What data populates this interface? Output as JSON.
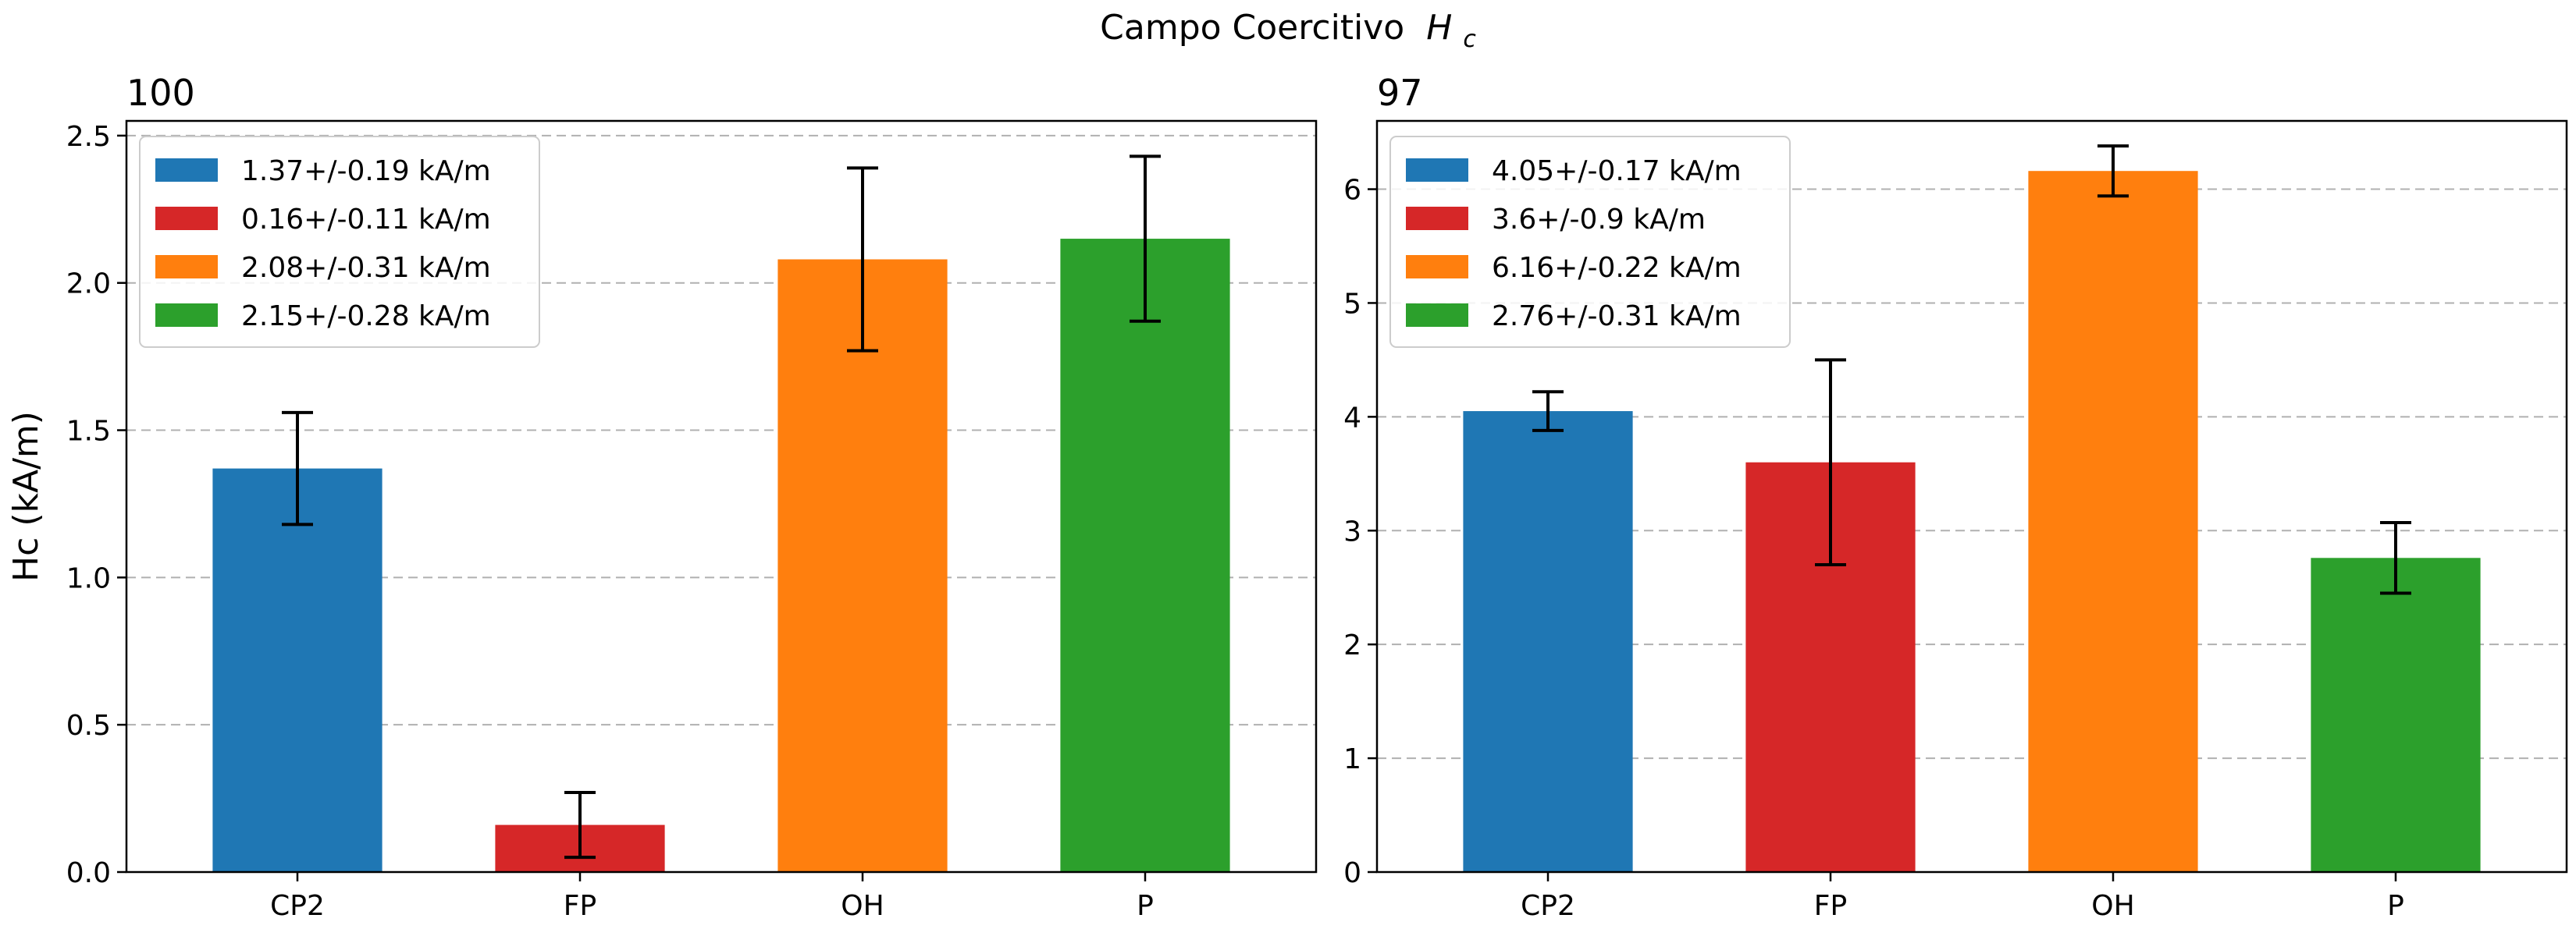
{
  "figure": {
    "suptitle": "Campo Coercitivo",
    "suptitle_symbol": "H",
    "suptitle_subscript": "c"
  },
  "chart_data": [
    {
      "type": "bar",
      "title": "100",
      "xlabel": "",
      "ylabel": "Hc (kA/m)",
      "categories": [
        "CP2",
        "FP",
        "OH",
        "P"
      ],
      "values": [
        1.37,
        0.16,
        2.08,
        2.15
      ],
      "errors": [
        0.19,
        0.11,
        0.31,
        0.28
      ],
      "colors": [
        "#1f77b4",
        "#d62728",
        "#ff7f0e",
        "#2ca02c"
      ],
      "ylim": [
        0,
        2.55
      ],
      "yticks": [
        0.0,
        0.5,
        1.0,
        1.5,
        2.0,
        2.5
      ],
      "ytick_labels": [
        "0.0",
        "0.5",
        "1.0",
        "1.5",
        "2.0",
        "2.5"
      ],
      "grid": "y-dashed",
      "legend_position": "top-left",
      "legend": [
        "1.37+/-0.19 kA/m",
        "0.16+/-0.11 kA/m",
        "2.08+/-0.31 kA/m",
        "2.15+/-0.28 kA/m"
      ]
    },
    {
      "type": "bar",
      "title": "97",
      "xlabel": "",
      "ylabel": "",
      "categories": [
        "CP2",
        "FP",
        "OH",
        "P"
      ],
      "values": [
        4.05,
        3.6,
        6.16,
        2.76
      ],
      "errors": [
        0.17,
        0.9,
        0.22,
        0.31
      ],
      "colors": [
        "#1f77b4",
        "#d62728",
        "#ff7f0e",
        "#2ca02c"
      ],
      "ylim": [
        0,
        6.6
      ],
      "yticks": [
        0,
        1,
        2,
        3,
        4,
        5,
        6
      ],
      "ytick_labels": [
        "0",
        "1",
        "2",
        "3",
        "4",
        "5",
        "6"
      ],
      "grid": "y-dashed",
      "legend_position": "top-left",
      "legend": [
        "4.05+/-0.17 kA/m",
        "3.6+/-0.9 kA/m",
        "6.16+/-0.22 kA/m",
        "2.76+/-0.31 kA/m"
      ]
    }
  ]
}
